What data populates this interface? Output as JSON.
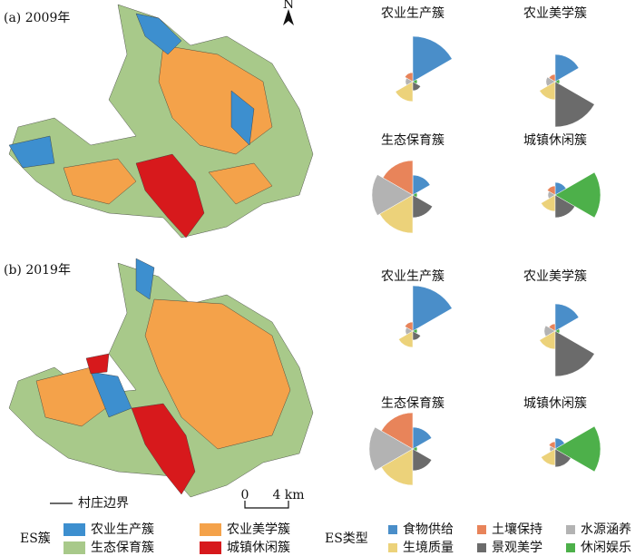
{
  "maps": [
    {
      "label": "(a) 2009年"
    },
    {
      "label": "(b) 2019年"
    }
  ],
  "north": "N",
  "boundary_legend": "村庄边界",
  "scale": {
    "start": "0",
    "end": "4 km"
  },
  "cluster_legend": {
    "title": "ES簇",
    "items": [
      {
        "name": "农业生产簇",
        "color": "#3d8fcf"
      },
      {
        "name": "农业美学簇",
        "color": "#f4a24a"
      },
      {
        "name": "生态保育簇",
        "color": "#a8c98a"
      },
      {
        "name": "城镇休闲簇",
        "color": "#d7191c"
      }
    ]
  },
  "es_type_legend": {
    "title": "ES类型",
    "items": [
      {
        "name": "食物供给",
        "color": "#4a8ec9"
      },
      {
        "name": "土壤保持",
        "color": "#e8845a"
      },
      {
        "name": "水源涵养",
        "color": "#b3b3b3"
      },
      {
        "name": "生境质量",
        "color": "#ecd27a"
      },
      {
        "name": "景观美学",
        "color": "#6b6b6b"
      },
      {
        "name": "休闲娱乐",
        "color": "#4db04a"
      }
    ]
  },
  "chart_data": [
    {
      "type": "rose",
      "title": "农业生产簇",
      "values": [
        50,
        10,
        8,
        22,
        10,
        5
      ]
    },
    {
      "type": "rose",
      "title": "农业美学簇",
      "values": [
        30,
        8,
        10,
        20,
        50,
        5
      ]
    },
    {
      "type": "rose",
      "title": "生态保育簇",
      "values": [
        22,
        38,
        45,
        42,
        25,
        5
      ]
    },
    {
      "type": "rose",
      "title": "城镇休闲簇",
      "values": [
        14,
        10,
        8,
        18,
        25,
        50
      ]
    },
    {
      "type": "rose",
      "title": "农业生产簇",
      "values": [
        50,
        10,
        8,
        18,
        10,
        5
      ]
    },
    {
      "type": "rose",
      "title": "农业美学簇",
      "values": [
        30,
        8,
        12,
        20,
        50,
        5
      ]
    },
    {
      "type": "rose",
      "title": "生态保育簇",
      "values": [
        24,
        40,
        48,
        40,
        24,
        5
      ]
    },
    {
      "type": "rose",
      "title": "城镇休闲簇",
      "values": [
        12,
        8,
        6,
        18,
        20,
        50
      ]
    }
  ]
}
